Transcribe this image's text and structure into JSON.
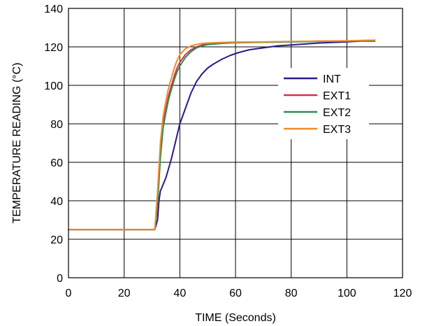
{
  "chart_data": {
    "type": "line",
    "title": "",
    "xlabel": "TIME (Seconds)",
    "ylabel": "TEMPERATURE READING (°C)",
    "xlim": [
      0,
      120
    ],
    "ylim": [
      0,
      140
    ],
    "xticks": [
      "0",
      "20",
      "40",
      "60",
      "80",
      "100",
      "120"
    ],
    "yticks": [
      "0",
      "20",
      "40",
      "60",
      "80",
      "100",
      "120",
      "140"
    ],
    "grid": true,
    "legend_position": "right-center",
    "series": [
      {
        "name": "INT",
        "color": "#2a1a8c",
        "x": [
          0,
          10,
          20,
          31,
          32,
          32.5,
          33,
          35,
          37,
          39,
          40,
          42,
          44,
          46,
          48,
          50,
          52,
          55,
          58,
          61,
          65,
          70,
          75,
          80,
          85,
          90,
          95,
          100,
          105,
          110
        ],
        "y": [
          25,
          25,
          25,
          25,
          30,
          40,
          45,
          52,
          62,
          74,
          80,
          88,
          96,
          102,
          106,
          109,
          111,
          113.5,
          115.5,
          117,
          118.5,
          119.5,
          120.5,
          121,
          121.5,
          122,
          122.3,
          122.6,
          123,
          123
        ]
      },
      {
        "name": "EXT1",
        "color": "#d6304f",
        "x": [
          0,
          10,
          20,
          31,
          32,
          33,
          34,
          35,
          36,
          37,
          38,
          39,
          40,
          42,
          44,
          46,
          48,
          50,
          55,
          60,
          70,
          80,
          90,
          100,
          110
        ],
        "y": [
          25,
          25,
          25,
          25,
          40,
          65,
          80,
          88,
          95,
          100,
          105,
          109,
          112,
          116,
          118.5,
          120,
          121,
          121.5,
          122,
          122.3,
          122.5,
          122.7,
          123,
          123,
          123.5
        ]
      },
      {
        "name": "EXT2",
        "color": "#2e8b57",
        "x": [
          0,
          10,
          20,
          31,
          32,
          33,
          34,
          35,
          36,
          37,
          38,
          39,
          40,
          42,
          44,
          46,
          48,
          50,
          55,
          60,
          70,
          80,
          90,
          100,
          110
        ],
        "y": [
          25,
          25,
          25,
          25,
          38,
          62,
          78,
          86,
          93,
          98,
          103,
          107,
          110,
          114.5,
          117.5,
          119.5,
          120.5,
          121.2,
          121.8,
          122.2,
          122.4,
          122.6,
          122.8,
          123,
          123.2
        ]
      },
      {
        "name": "EXT3",
        "color": "#f28c28",
        "x": [
          0,
          10,
          20,
          31,
          32,
          33,
          34,
          35,
          36,
          37,
          38,
          39,
          40,
          42,
          44,
          46,
          48,
          50,
          55,
          60,
          70,
          80,
          90,
          100,
          110
        ],
        "y": [
          25,
          25,
          25,
          25,
          45,
          70,
          84,
          92,
          99,
          104,
          109,
          113,
          116,
          119,
          120.5,
          121.3,
          121.8,
          122,
          122.3,
          122.5,
          122.6,
          122.8,
          123,
          123.2,
          123.5
        ]
      }
    ]
  }
}
